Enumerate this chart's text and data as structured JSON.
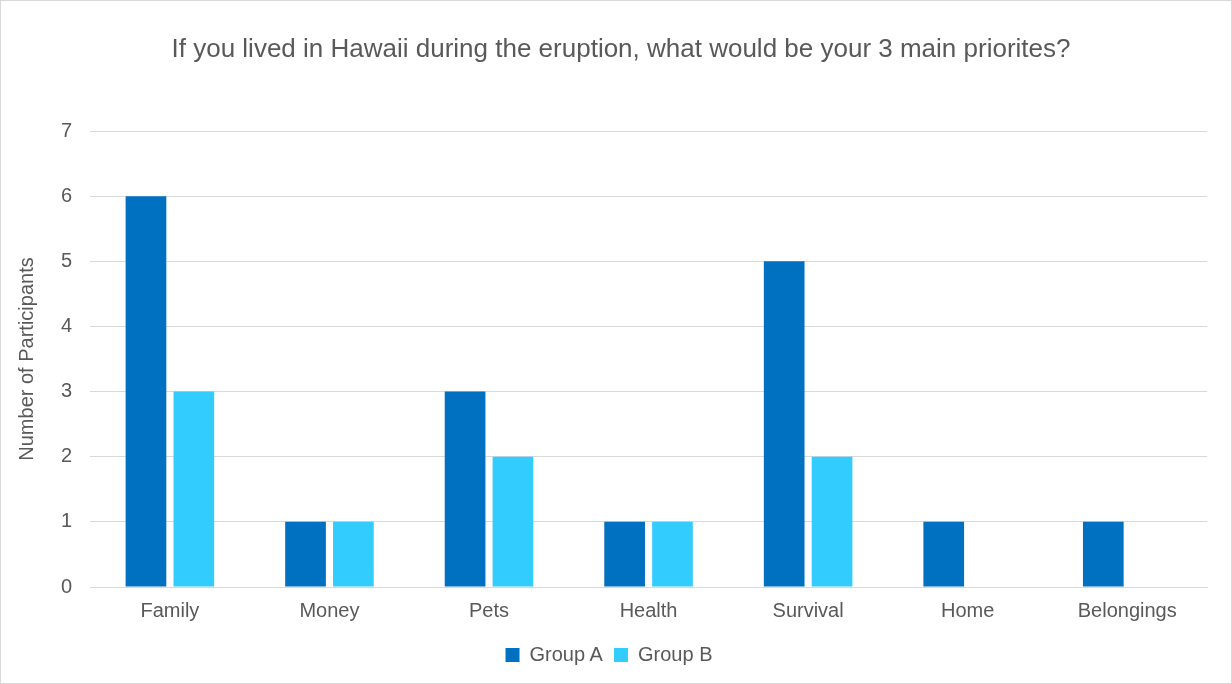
{
  "chart_data": {
    "type": "bar",
    "title": "If you lived in Hawaii during the eruption, what would be your 3 main priorites?",
    "ylabel": "Number of Participants",
    "categories": [
      "Family",
      "Money",
      "Pets",
      "Health",
      "Survival",
      "Home",
      "Belongings"
    ],
    "series": [
      {
        "name": "Group A",
        "color": "#0070c0",
        "values": [
          6,
          1,
          3,
          1,
          5,
          1,
          1
        ]
      },
      {
        "name": "Group B",
        "color": "#33ccff",
        "values": [
          3,
          1,
          2,
          1,
          2,
          0,
          0
        ]
      }
    ],
    "ylim": [
      0,
      7
    ],
    "yticks": [
      0,
      1,
      2,
      3,
      4,
      5,
      6,
      7
    ],
    "grid": "y",
    "legend": "bottom"
  }
}
